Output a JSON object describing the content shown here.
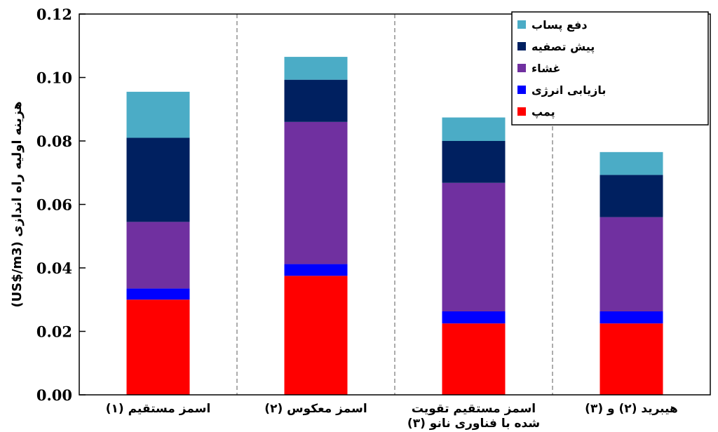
{
  "chart_data": {
    "type": "bar",
    "stacked": true,
    "ylabel": "هزینه اولیه راه اندازی (US$/m3)",
    "ylim": [
      0,
      0.12
    ],
    "yticks": [
      "0.00",
      "0.02",
      "0.04",
      "0.06",
      "0.08",
      "0.10",
      "0.12"
    ],
    "grid": false,
    "legend_position": "top-right",
    "categories": [
      [
        "اسمز مستقیم (۱)"
      ],
      [
        "اسمز معکوس (۲)"
      ],
      [
        "اسمز مستقیم تقویت",
        "شده با فناوری نانو (۳)"
      ],
      [
        "هیبرید (۲) و (۳)"
      ]
    ],
    "series": [
      {
        "name": "پمپ",
        "color": "#ff0000",
        "values": [
          0.03,
          0.0375,
          0.0225,
          0.0225
        ]
      },
      {
        "name": "بازیابی انرژی",
        "color": "#0000ff",
        "values": [
          0.0035,
          0.0037,
          0.0038,
          0.0038
        ]
      },
      {
        "name": "غشاء",
        "color": "#7030a0",
        "values": [
          0.021,
          0.0448,
          0.0405,
          0.0297
        ]
      },
      {
        "name": "پیش تصفیه",
        "color": "#002060",
        "values": [
          0.0265,
          0.0133,
          0.0132,
          0.0133
        ]
      },
      {
        "name": "دفع پساب",
        "color": "#4bacc6",
        "values": [
          0.0145,
          0.0072,
          0.0074,
          0.0072
        ]
      }
    ]
  }
}
